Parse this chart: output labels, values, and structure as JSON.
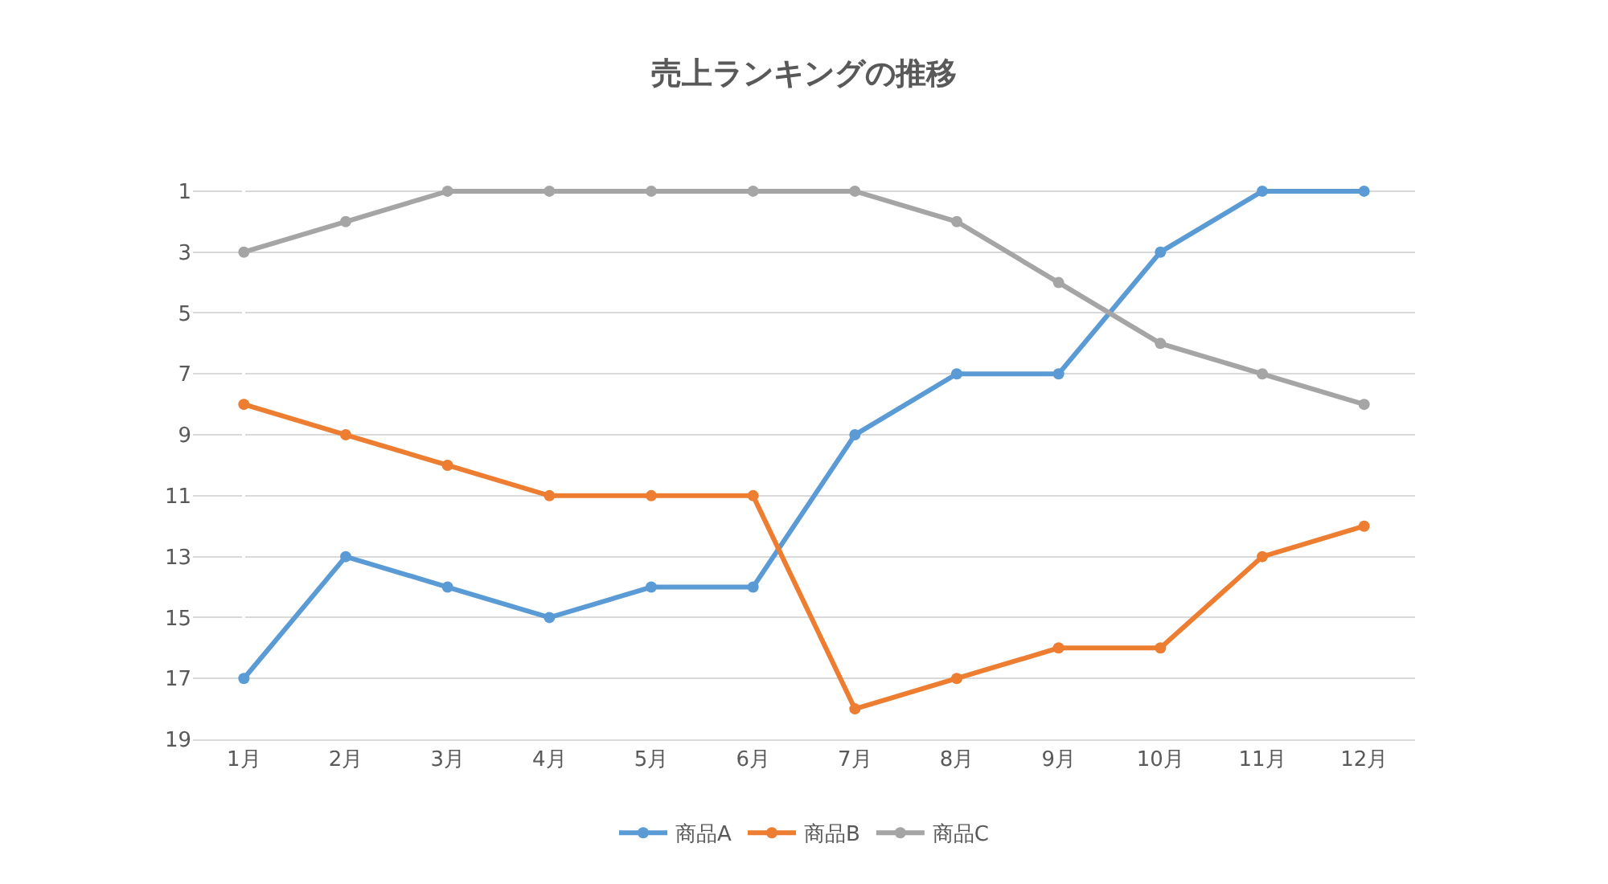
{
  "chart_data": {
    "type": "line",
    "title": "売上ランキングの推移",
    "categories": [
      "1月",
      "2月",
      "3月",
      "4月",
      "5月",
      "6月",
      "7月",
      "8月",
      "9月",
      "10月",
      "11月",
      "12月"
    ],
    "series": [
      {
        "name": "商品A",
        "color": "#5b9bd5",
        "values": [
          17,
          13,
          14,
          15,
          14,
          14,
          9,
          7,
          7,
          3,
          1,
          1
        ]
      },
      {
        "name": "商品B",
        "color": "#ed7d31",
        "values": [
          8,
          9,
          10,
          11,
          11,
          11,
          18,
          17,
          16,
          16,
          13,
          12
        ]
      },
      {
        "name": "商品C",
        "color": "#a5a5a5",
        "values": [
          3,
          2,
          1,
          1,
          1,
          1,
          1,
          2,
          4,
          6,
          7,
          8
        ]
      }
    ],
    "ylim": [
      19,
      0
    ],
    "yticks": [
      1,
      3,
      5,
      7,
      9,
      11,
      13,
      15,
      17,
      19
    ],
    "grid": "y",
    "legend": "bottom",
    "marker": "circle",
    "line_style": "solid"
  }
}
